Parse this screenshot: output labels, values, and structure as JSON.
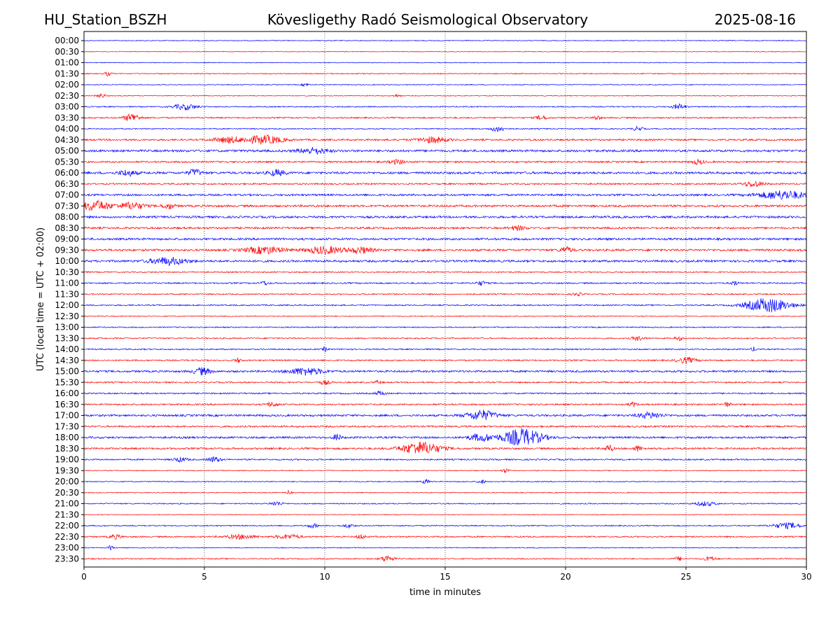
{
  "header": {
    "station": "HU_Station_BSZH",
    "observatory": "Kövesligethy Radó Seismological Observatory",
    "date": "2025-08-16"
  },
  "chart_data": {
    "type": "line",
    "title": "Kövesligethy Radó Seismological Observatory",
    "xlabel": "time in minutes",
    "ylabel": "UTC (local time = UTC + 02:00)",
    "xlim": [
      0,
      30
    ],
    "xticks": [
      0,
      5,
      10,
      15,
      20,
      25,
      30
    ],
    "vertical_grid": [
      5,
      10,
      15,
      20,
      25
    ],
    "colors": {
      "even_trace": "#0000ff",
      "odd_trace": "#ff0000",
      "grid": "#000000"
    },
    "traces": [
      {
        "label": "00:00",
        "noise": 0.6,
        "events": []
      },
      {
        "label": "00:30",
        "noise": 0.5,
        "events": []
      },
      {
        "label": "01:00",
        "noise": 0.5,
        "events": []
      },
      {
        "label": "01:30",
        "noise": 0.7,
        "events": [
          {
            "t": 1.0,
            "amp": 3,
            "dur": 0.3
          }
        ]
      },
      {
        "label": "02:00",
        "noise": 0.6,
        "events": [
          {
            "t": 9.2,
            "amp": 2,
            "dur": 0.3
          }
        ]
      },
      {
        "label": "02:30",
        "noise": 0.6,
        "events": [
          {
            "t": 0.7,
            "amp": 3,
            "dur": 0.4
          },
          {
            "t": 13.0,
            "amp": 2,
            "dur": 0.3
          }
        ]
      },
      {
        "label": "03:00",
        "noise": 0.8,
        "events": [
          {
            "t": 4.2,
            "amp": 4,
            "dur": 1.0
          },
          {
            "t": 24.7,
            "amp": 4,
            "dur": 0.5
          }
        ]
      },
      {
        "label": "03:30",
        "noise": 1.0,
        "events": [
          {
            "t": 2.0,
            "amp": 6,
            "dur": 0.6
          },
          {
            "t": 19.0,
            "amp": 3,
            "dur": 0.5
          },
          {
            "t": 21.3,
            "amp": 3,
            "dur": 0.3
          }
        ]
      },
      {
        "label": "04:00",
        "noise": 0.8,
        "events": [
          {
            "t": 17.2,
            "amp": 4,
            "dur": 0.6
          },
          {
            "t": 23.0,
            "amp": 3,
            "dur": 0.4
          }
        ]
      },
      {
        "label": "04:30",
        "noise": 1.2,
        "events": [
          {
            "t": 6.0,
            "amp": 4,
            "dur": 1.2
          },
          {
            "t": 7.5,
            "amp": 6,
            "dur": 1.5
          },
          {
            "t": 14.5,
            "amp": 4,
            "dur": 1.2
          }
        ]
      },
      {
        "label": "05:00",
        "noise": 1.6,
        "events": [
          {
            "t": 9.5,
            "amp": 4,
            "dur": 1.2
          }
        ]
      },
      {
        "label": "05:30",
        "noise": 1.2,
        "events": [
          {
            "t": 13.0,
            "amp": 3,
            "dur": 0.6
          },
          {
            "t": 25.5,
            "amp": 3,
            "dur": 0.5
          }
        ]
      },
      {
        "label": "06:00",
        "noise": 1.6,
        "events": [
          {
            "t": 1.8,
            "amp": 4,
            "dur": 0.7
          },
          {
            "t": 4.6,
            "amp": 5,
            "dur": 0.5
          },
          {
            "t": 8.0,
            "amp": 4,
            "dur": 0.7
          }
        ]
      },
      {
        "label": "06:30",
        "noise": 1.1,
        "events": [
          {
            "t": 27.8,
            "amp": 4,
            "dur": 0.8
          }
        ]
      },
      {
        "label": "07:00",
        "noise": 1.4,
        "events": [
          {
            "t": 29.0,
            "amp": 6,
            "dur": 2.0
          }
        ]
      },
      {
        "label": "07:30",
        "noise": 1.5,
        "events": [
          {
            "t": 0.5,
            "amp": 7,
            "dur": 1.2
          },
          {
            "t": 2.0,
            "amp": 5,
            "dur": 1.0
          },
          {
            "t": 3.5,
            "amp": 4,
            "dur": 0.5
          }
        ]
      },
      {
        "label": "08:00",
        "noise": 1.5,
        "events": []
      },
      {
        "label": "08:30",
        "noise": 1.4,
        "events": [
          {
            "t": 18.0,
            "amp": 3,
            "dur": 0.6
          }
        ]
      },
      {
        "label": "09:00",
        "noise": 1.5,
        "events": []
      },
      {
        "label": "09:30",
        "noise": 1.5,
        "events": [
          {
            "t": 7.5,
            "amp": 5,
            "dur": 1.5
          },
          {
            "t": 10.0,
            "amp": 5,
            "dur": 1.5
          },
          {
            "t": 11.5,
            "amp": 4,
            "dur": 1.0
          },
          {
            "t": 20.0,
            "amp": 4,
            "dur": 0.5
          }
        ]
      },
      {
        "label": "10:00",
        "noise": 1.5,
        "events": [
          {
            "t": 3.5,
            "amp": 5,
            "dur": 1.5
          }
        ]
      },
      {
        "label": "10:30",
        "noise": 0.9,
        "events": []
      },
      {
        "label": "11:00",
        "noise": 1.0,
        "events": [
          {
            "t": 7.5,
            "amp": 3,
            "dur": 0.3
          },
          {
            "t": 16.5,
            "amp": 3,
            "dur": 0.4
          },
          {
            "t": 27.0,
            "amp": 3,
            "dur": 0.3
          }
        ]
      },
      {
        "label": "11:30",
        "noise": 0.9,
        "events": [
          {
            "t": 20.5,
            "amp": 2,
            "dur": 0.4
          }
        ]
      },
      {
        "label": "12:00",
        "noise": 0.9,
        "events": [
          {
            "t": 28.4,
            "amp": 10,
            "dur": 1.8
          }
        ]
      },
      {
        "label": "12:30",
        "noise": 0.7,
        "events": []
      },
      {
        "label": "13:00",
        "noise": 0.8,
        "events": []
      },
      {
        "label": "13:30",
        "noise": 0.9,
        "events": [
          {
            "t": 23.0,
            "amp": 3,
            "dur": 0.5
          },
          {
            "t": 24.7,
            "amp": 3,
            "dur": 0.3
          }
        ]
      },
      {
        "label": "14:00",
        "noise": 0.9,
        "events": [
          {
            "t": 10.0,
            "amp": 3,
            "dur": 0.2
          },
          {
            "t": 27.8,
            "amp": 3,
            "dur": 0.2
          }
        ]
      },
      {
        "label": "14:30",
        "noise": 1.0,
        "events": [
          {
            "t": 6.4,
            "amp": 3,
            "dur": 0.3
          },
          {
            "t": 25.0,
            "amp": 4,
            "dur": 0.8
          }
        ]
      },
      {
        "label": "15:00",
        "noise": 1.4,
        "events": [
          {
            "t": 4.9,
            "amp": 5,
            "dur": 0.7
          },
          {
            "t": 9.2,
            "amp": 5,
            "dur": 1.4
          }
        ]
      },
      {
        "label": "15:30",
        "noise": 1.0,
        "events": [
          {
            "t": 10.0,
            "amp": 3,
            "dur": 0.4
          },
          {
            "t": 12.2,
            "amp": 2,
            "dur": 0.3
          }
        ]
      },
      {
        "label": "16:00",
        "noise": 1.0,
        "events": [
          {
            "t": 12.3,
            "amp": 3,
            "dur": 0.4
          }
        ]
      },
      {
        "label": "16:30",
        "noise": 1.1,
        "events": [
          {
            "t": 7.8,
            "amp": 3,
            "dur": 0.5
          },
          {
            "t": 22.8,
            "amp": 3,
            "dur": 0.3
          },
          {
            "t": 26.7,
            "amp": 3,
            "dur": 0.3
          }
        ]
      },
      {
        "label": "17:00",
        "noise": 1.4,
        "events": [
          {
            "t": 16.5,
            "amp": 7,
            "dur": 1.2
          },
          {
            "t": 23.5,
            "amp": 4,
            "dur": 1.0
          }
        ]
      },
      {
        "label": "17:30",
        "noise": 1.2,
        "events": []
      },
      {
        "label": "18:00",
        "noise": 1.4,
        "events": [
          {
            "t": 10.5,
            "amp": 5,
            "dur": 0.3
          },
          {
            "t": 16.5,
            "amp": 5,
            "dur": 1.0
          },
          {
            "t": 18.2,
            "amp": 12,
            "dur": 1.6
          }
        ]
      },
      {
        "label": "18:30",
        "noise": 1.3,
        "events": [
          {
            "t": 14.0,
            "amp": 9,
            "dur": 1.6
          },
          {
            "t": 21.8,
            "amp": 5,
            "dur": 0.3
          },
          {
            "t": 23.0,
            "amp": 4,
            "dur": 0.3
          }
        ]
      },
      {
        "label": "19:00",
        "noise": 1.0,
        "events": [
          {
            "t": 4.0,
            "amp": 3,
            "dur": 0.6
          },
          {
            "t": 5.4,
            "amp": 4,
            "dur": 0.5
          }
        ]
      },
      {
        "label": "19:30",
        "noise": 0.6,
        "events": [
          {
            "t": 17.5,
            "amp": 3,
            "dur": 0.3
          }
        ]
      },
      {
        "label": "20:00",
        "noise": 0.7,
        "events": [
          {
            "t": 14.2,
            "amp": 3,
            "dur": 0.3
          },
          {
            "t": 16.5,
            "amp": 3,
            "dur": 0.3
          }
        ]
      },
      {
        "label": "20:30",
        "noise": 0.6,
        "events": [
          {
            "t": 8.5,
            "amp": 3,
            "dur": 0.2
          }
        ]
      },
      {
        "label": "21:00",
        "noise": 0.8,
        "events": [
          {
            "t": 8.0,
            "amp": 3,
            "dur": 0.5
          },
          {
            "t": 25.8,
            "amp": 3,
            "dur": 0.8
          }
        ]
      },
      {
        "label": "21:30",
        "noise": 0.5,
        "events": []
      },
      {
        "label": "22:00",
        "noise": 0.8,
        "events": [
          {
            "t": 9.5,
            "amp": 3,
            "dur": 0.4
          },
          {
            "t": 11.0,
            "amp": 3,
            "dur": 0.4
          },
          {
            "t": 29.2,
            "amp": 4,
            "dur": 1.2
          }
        ]
      },
      {
        "label": "22:30",
        "noise": 1.0,
        "events": [
          {
            "t": 1.3,
            "amp": 3,
            "dur": 0.5
          },
          {
            "t": 6.5,
            "amp": 3,
            "dur": 1.2
          },
          {
            "t": 8.5,
            "amp": 3,
            "dur": 1.0
          },
          {
            "t": 11.5,
            "amp": 3,
            "dur": 0.4
          }
        ]
      },
      {
        "label": "23:00",
        "noise": 0.6,
        "events": [
          {
            "t": 1.1,
            "amp": 3,
            "dur": 0.2
          }
        ]
      },
      {
        "label": "23:30",
        "noise": 0.8,
        "events": [
          {
            "t": 12.6,
            "amp": 5,
            "dur": 0.5
          },
          {
            "t": 24.7,
            "amp": 3,
            "dur": 0.3
          },
          {
            "t": 26.0,
            "amp": 3,
            "dur": 0.5
          }
        ]
      }
    ]
  }
}
